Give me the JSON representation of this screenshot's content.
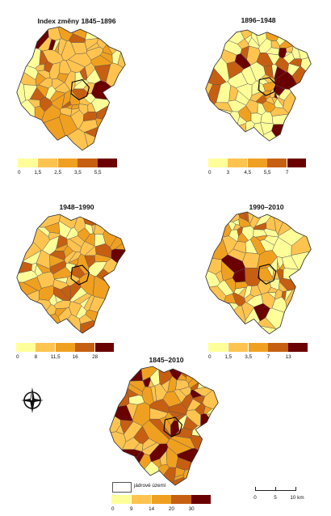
{
  "panels": [
    {
      "title": "Index změny 1845–1896",
      "legend_ticks": [
        "0",
        "1,5",
        "2,5",
        "3,5",
        "5,5"
      ],
      "legend_colors": [
        "#ffff99",
        "#fec44f",
        "#f0a020",
        "#c65f12",
        "#6b0000"
      ]
    },
    {
      "title": "1896–1948",
      "legend_ticks": [
        "0",
        "3",
        "4,5",
        "5,5",
        "7"
      ],
      "legend_colors": [
        "#ffff99",
        "#fec44f",
        "#f0a020",
        "#c65f12",
        "#6b0000"
      ]
    },
    {
      "title": "1948–1990",
      "legend_ticks": [
        "0",
        "8",
        "11,5",
        "16",
        "28"
      ],
      "legend_colors": [
        "#ffff99",
        "#fec44f",
        "#f0a020",
        "#c65f12",
        "#6b0000"
      ]
    },
    {
      "title": "1990–2010",
      "legend_ticks": [
        "0",
        "1,5",
        "3,5",
        "7",
        "13"
      ],
      "legend_colors": [
        "#ffff99",
        "#fec44f",
        "#f0a020",
        "#c65f12",
        "#6b0000"
      ]
    },
    {
      "title": "1845–2010",
      "legend_ticks": [
        "0",
        "9",
        "14",
        "20",
        "30"
      ],
      "legend_colors": [
        "#ffff99",
        "#fec44f",
        "#f0a020",
        "#c65f12",
        "#6b0000"
      ]
    }
  ],
  "core_area_label": "jádrové území",
  "scale": {
    "ticks": [
      "0",
      "5",
      "10 km"
    ]
  },
  "compass_icon": "north-arrow-icon"
}
